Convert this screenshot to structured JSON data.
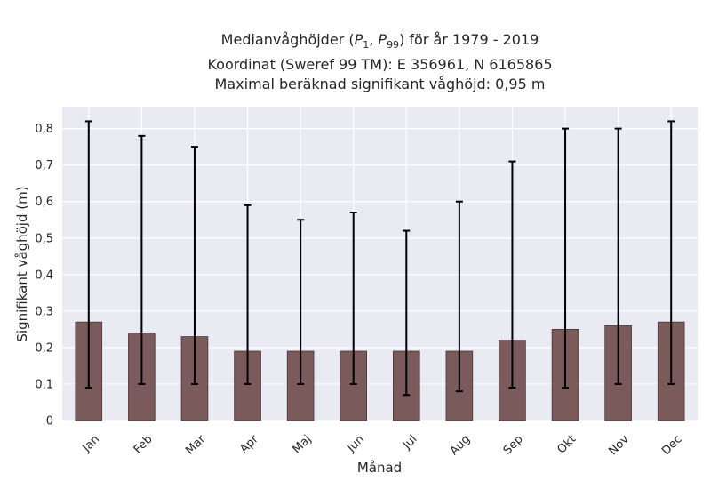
{
  "chart_data": {
    "type": "bar",
    "title_lines": [
      "Medianvåghöjder (P1, P99) för år 1979 - 2019",
      "Koordinat (Sweref 99 TM): E 356961, N 6165865",
      "Maximal beräknad signifikant våghöjd: 0,95 m"
    ],
    "xlabel": "Månad",
    "ylabel": "Signifikant våghöjd (m)",
    "ylim": [
      0,
      0.86
    ],
    "yticks": [
      0,
      0.1,
      0.2,
      0.3,
      0.4,
      0.5,
      0.6,
      0.7,
      0.8
    ],
    "ytick_labels": [
      "0",
      "0,1",
      "0,2",
      "0,3",
      "0,4",
      "0,5",
      "0,6",
      "0,7",
      "0,8"
    ],
    "categories": [
      "Jan",
      "Feb",
      "Mar",
      "Apr",
      "Maj",
      "Jun",
      "Jul",
      "Aug",
      "Sep",
      "Okt",
      "Nov",
      "Dec"
    ],
    "values": [
      0.27,
      0.24,
      0.23,
      0.19,
      0.19,
      0.19,
      0.19,
      0.19,
      0.22,
      0.25,
      0.26,
      0.27
    ],
    "error_low": [
      0.09,
      0.1,
      0.1,
      0.1,
      0.1,
      0.1,
      0.07,
      0.08,
      0.09,
      0.09,
      0.1,
      0.1
    ],
    "error_high": [
      0.82,
      0.78,
      0.75,
      0.59,
      0.55,
      0.57,
      0.52,
      0.6,
      0.71,
      0.8,
      0.8,
      0.82
    ],
    "grid": true,
    "colors": {
      "bar": "#7b5a5b",
      "bar_edge": "#4a3536",
      "error": "#000000",
      "plot_bg": "#eaeaf2",
      "grid": "#ffffff"
    }
  }
}
